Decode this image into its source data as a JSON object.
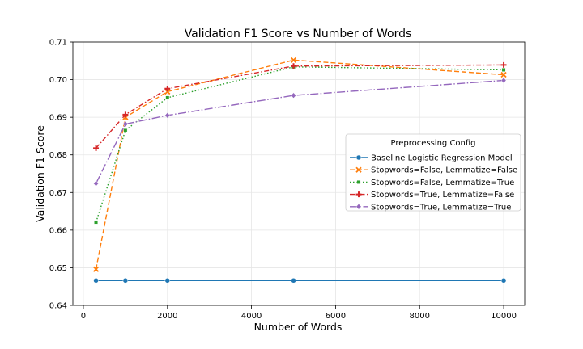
{
  "chart_data": {
    "type": "line",
    "title": "Validation F1 Score vs Number of Words",
    "xlabel": "Number of Words",
    "ylabel": "Validation F1 Score",
    "xlim": [
      -250,
      10500
    ],
    "ylim": [
      0.64,
      0.71
    ],
    "xticks": [
      0,
      2000,
      4000,
      6000,
      8000,
      10000
    ],
    "yticks": [
      0.64,
      0.65,
      0.66,
      0.67,
      0.68,
      0.69,
      0.7,
      0.71
    ],
    "ytick_labels": [
      "0.64",
      "0.65",
      "0.66",
      "0.67",
      "0.68",
      "0.69",
      "0.70",
      "0.71"
    ],
    "grid": true,
    "legend": {
      "title": "Preprocessing Config",
      "placement": "center-right"
    },
    "series": [
      {
        "name": "Baseline Logistic Regression Model",
        "color": "#1f77b4",
        "line_style": "solid",
        "marker": "circle",
        "x": [
          300,
          1000,
          2000,
          5000,
          10000
        ],
        "values": [
          0.6466,
          0.6466,
          0.6466,
          0.6466,
          0.6466
        ]
      },
      {
        "name": "Stopwords=False, Lemmatize=False",
        "color": "#ff7f0e",
        "line_style": "dashed",
        "marker": "x",
        "x": [
          300,
          1000,
          2000,
          5000,
          10000
        ],
        "values": [
          0.6496,
          0.69,
          0.6968,
          0.7052,
          0.7013
        ]
      },
      {
        "name": "Stopwords=False, Lemmatize=True",
        "color": "#2ca02c",
        "line_style": "dotted",
        "marker": "square",
        "x": [
          300,
          1000,
          2000,
          5000,
          10000
        ],
        "values": [
          0.6621,
          0.6865,
          0.6952,
          0.7034,
          0.7026
        ]
      },
      {
        "name": "Stopwords=True, Lemmatize=False",
        "color": "#d62728",
        "line_style": "dashdot",
        "marker": "plus",
        "x": [
          300,
          1000,
          2000,
          5000,
          10000
        ],
        "values": [
          0.6818,
          0.6907,
          0.6976,
          0.7036,
          0.7039
        ]
      },
      {
        "name": "Stopwords=True, Lemmatize=True",
        "color": "#9467bd",
        "line_style": "longdash",
        "marker": "diamond",
        "x": [
          300,
          1000,
          2000,
          5000,
          10000
        ],
        "values": [
          0.6724,
          0.6882,
          0.6905,
          0.6958,
          0.6998
        ]
      }
    ]
  }
}
